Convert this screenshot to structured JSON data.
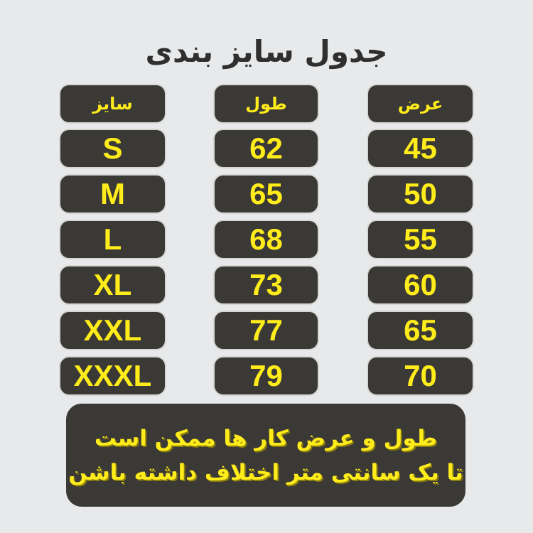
{
  "title": "جدول سایز بندی",
  "headers": {
    "size": "سایز",
    "length": "طول",
    "width": "عرض"
  },
  "rows": [
    {
      "size": "S",
      "length": "62",
      "width": "45"
    },
    {
      "size": "M",
      "length": "65",
      "width": "50"
    },
    {
      "size": "L",
      "length": "68",
      "width": "55"
    },
    {
      "size": "XL",
      "length": "73",
      "width": "60"
    },
    {
      "size": "XXL",
      "length": "77",
      "width": "65"
    },
    {
      "size": "XXXL",
      "length": "79",
      "width": "70"
    }
  ],
  "note": {
    "line1": "طول و عرض کار ها ممکن است",
    "line2": "تا یک سانتی متر اختلاف داشته باشن"
  },
  "colors": {
    "background": "#e8e9ea",
    "box": "#3a3935",
    "text_accent": "#ffec1a",
    "title": "#2f2f2f"
  }
}
